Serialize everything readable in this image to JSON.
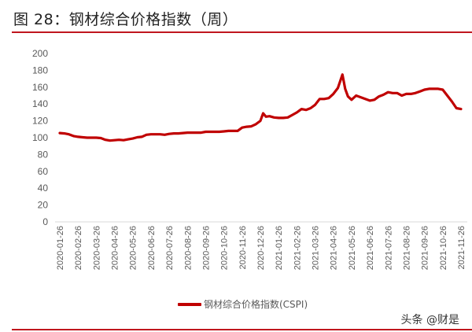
{
  "header": {
    "title": "图 28：钢材综合价格指数（周）"
  },
  "legend": {
    "label": "钢材综合价格指数(CSPI)",
    "color": "#c00000"
  },
  "watermark": "头条 @财是",
  "colors": {
    "accent": "#c0161e",
    "line": "#c00000",
    "axis": "#d9d9d9",
    "text": "#595959"
  },
  "chart_data": {
    "type": "line",
    "title": "钢材综合价格指数（周）",
    "xlabel": "",
    "ylabel": "",
    "ylim": [
      0,
      200
    ],
    "yticks": [
      0,
      20,
      40,
      60,
      80,
      100,
      120,
      140,
      160,
      180,
      200
    ],
    "grid": false,
    "legend_position": "bottom",
    "xticks": [
      "2020-01-26",
      "2020-02-26",
      "2020-03-26",
      "2020-04-26",
      "2020-05-26",
      "2020-06-26",
      "2020-07-26",
      "2020-08-26",
      "2020-09-26",
      "2020-10-26",
      "2020-11-26",
      "2020-12-26",
      "2021-01-26",
      "2021-02-26",
      "2021-03-26",
      "2021-04-26",
      "2021-05-26",
      "2021-06-26",
      "2021-07-26",
      "2021-08-26",
      "2021-09-26",
      "2021-10-26",
      "2021-11-26"
    ],
    "series": [
      {
        "name": "钢材综合价格指数(CSPI)",
        "x_month_index": [
          0,
          0.25,
          0.5,
          0.75,
          1,
          1.25,
          1.5,
          1.75,
          2,
          2.25,
          2.5,
          2.75,
          3,
          3.25,
          3.5,
          3.75,
          4,
          4.25,
          4.5,
          4.75,
          5,
          5.25,
          5.5,
          5.75,
          6,
          6.25,
          6.5,
          6.75,
          7,
          7.25,
          7.5,
          7.75,
          8,
          8.25,
          8.5,
          8.75,
          9,
          9.25,
          9.5,
          9.75,
          10,
          10.25,
          10.5,
          10.75,
          11,
          11.15,
          11.3,
          11.5,
          11.75,
          12,
          12.25,
          12.5,
          12.75,
          13,
          13.25,
          13.5,
          13.75,
          14,
          14.25,
          14.5,
          14.75,
          15,
          15.25,
          15.5,
          15.65,
          15.8,
          16,
          16.25,
          16.5,
          16.75,
          17,
          17.25,
          17.5,
          17.75,
          18,
          18.25,
          18.5,
          18.75,
          19,
          19.25,
          19.5,
          19.75,
          20,
          20.25,
          20.5,
          20.75,
          21,
          21.25,
          21.5,
          21.75,
          22
        ],
        "values": [
          105.5,
          105,
          104,
          102,
          101,
          100.5,
          100,
          100,
          100,
          99.5,
          97.5,
          96.5,
          97,
          97.5,
          97,
          98,
          99,
          100.5,
          101,
          103.5,
          104,
          104,
          104,
          103.5,
          104.5,
          105,
          105,
          105.5,
          106,
          106,
          106,
          106,
          107,
          107,
          107,
          107,
          107.5,
          108,
          108,
          108,
          112,
          113,
          113.5,
          116,
          120,
          129,
          125,
          125.5,
          124,
          123.5,
          123.5,
          124,
          127,
          130,
          134,
          133,
          135,
          139,
          146,
          146,
          147,
          152,
          159,
          175,
          158,
          149,
          145,
          150,
          148,
          146,
          144,
          145,
          149,
          151,
          154,
          153,
          153,
          150,
          152,
          152,
          153,
          155,
          157,
          158,
          158,
          158,
          157,
          150,
          143,
          135,
          134
        ]
      }
    ]
  }
}
